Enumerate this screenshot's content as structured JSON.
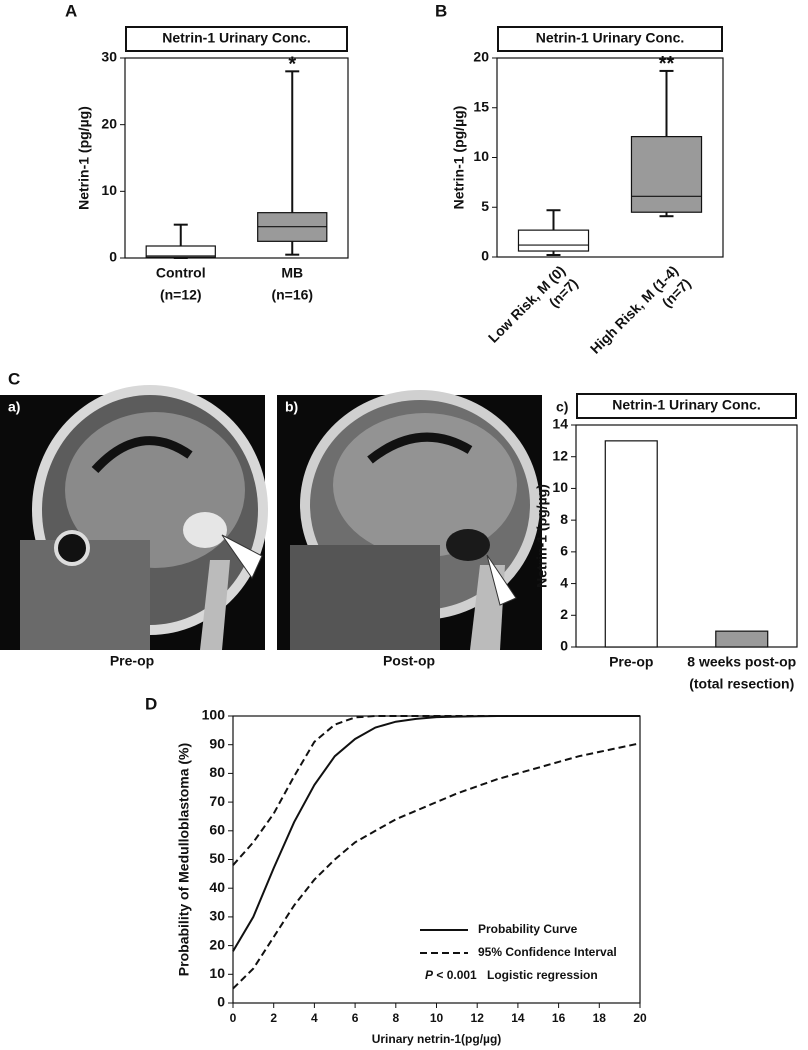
{
  "chart_data": [
    {
      "type": "box",
      "panel": "A",
      "title": "Netrin-1 Urinary Conc.",
      "ylabel": "Netrin-1 (pg/µg)",
      "categories": [
        "Control",
        "MB"
      ],
      "category_sublabels": [
        "(n=12)",
        "(n=16)"
      ],
      "boxes": [
        {
          "min": 0,
          "q1": 0.1,
          "median": 0.3,
          "q3": 1.8,
          "max": 5,
          "color": "#ffffff"
        },
        {
          "min": 0.5,
          "q1": 2.5,
          "median": 4.7,
          "q3": 6.8,
          "max": 28,
          "color": "#9a9a9a"
        }
      ],
      "significance": [
        null,
        "*"
      ],
      "ylim": [
        0,
        30
      ],
      "yticks": [
        0,
        10,
        20,
        30
      ]
    },
    {
      "type": "box",
      "panel": "B",
      "title": "Netrin-1 Urinary Conc.",
      "ylabel": "Netrin-1 (pg/µg)",
      "categories": [
        "Low Risk, M (0)",
        "High Risk, M (1-4)"
      ],
      "category_sublabels": [
        "(n=7)",
        "(n=7)"
      ],
      "label_rotation": -45,
      "boxes": [
        {
          "min": 0.2,
          "q1": 0.6,
          "median": 1.2,
          "q3": 2.7,
          "max": 4.7,
          "color": "#ffffff"
        },
        {
          "min": 4.1,
          "q1": 4.5,
          "median": 6.1,
          "q3": 12.1,
          "max": 18.7,
          "color": "#9a9a9a"
        }
      ],
      "significance": [
        null,
        "**"
      ],
      "ylim": [
        0,
        20
      ],
      "yticks": [
        0,
        5,
        10,
        15,
        20
      ]
    },
    {
      "type": "bar",
      "panel": "c)",
      "title": "Netrin-1 Urinary Conc.",
      "ylabel": "Netrin-1 (pg/µg)",
      "categories": [
        "Pre-op",
        "8 weeks post-op"
      ],
      "category_sublabels": [
        null,
        "(total resection)"
      ],
      "values": [
        13,
        1
      ],
      "colors": [
        "#ffffff",
        "#9a9a9a"
      ],
      "ylim": [
        0,
        14
      ],
      "yticks": [
        0,
        2,
        4,
        6,
        8,
        10,
        12,
        14
      ]
    },
    {
      "type": "line",
      "panel": "D",
      "xlabel": "Urinary netrin-1(pg/µg)",
      "ylabel": "Probability of Medulloblastoma (%)",
      "x": [
        0,
        1,
        2,
        3,
        4,
        5,
        6,
        7,
        8,
        9,
        10,
        11,
        12,
        13,
        14,
        15,
        16,
        17,
        18,
        19,
        20
      ],
      "series": [
        {
          "name": "Probability Curve",
          "color": "#111111",
          "dashed": false,
          "values": [
            18,
            30,
            47,
            63,
            76,
            86,
            92,
            96,
            98,
            99,
            99.6,
            99.8,
            99.9,
            100,
            100,
            100,
            100,
            100,
            100,
            100,
            100
          ]
        },
        {
          "name": "95% Confidence Interval",
          "color": "#111111",
          "dashed": true,
          "values": [
            48,
            56,
            66,
            79,
            91,
            97,
            99.5,
            100,
            100,
            100,
            100,
            100,
            100,
            100,
            100,
            100,
            100,
            100,
            100,
            100,
            100
          ],
          "lower": [
            5,
            12,
            23,
            34,
            43,
            50,
            56,
            60,
            64,
            67,
            70,
            73,
            75.5,
            78,
            80,
            82,
            84,
            86,
            87.5,
            89,
            90.5
          ]
        }
      ],
      "annotation": {
        "p_symbol": "P",
        "p_text": "< 0.001",
        "method": "Logistic regression"
      },
      "xlim": [
        0,
        20
      ],
      "xticks": [
        0,
        2,
        4,
        6,
        8,
        10,
        12,
        14,
        16,
        18,
        20
      ],
      "ylim": [
        0,
        100
      ],
      "yticks": [
        0,
        10,
        20,
        30,
        40,
        50,
        60,
        70,
        80,
        90,
        100
      ]
    }
  ],
  "panel_c": {
    "label": "C",
    "images": [
      {
        "label": "a)",
        "caption": "Pre-op"
      },
      {
        "label": "b)",
        "caption": "Post-op"
      }
    ]
  }
}
